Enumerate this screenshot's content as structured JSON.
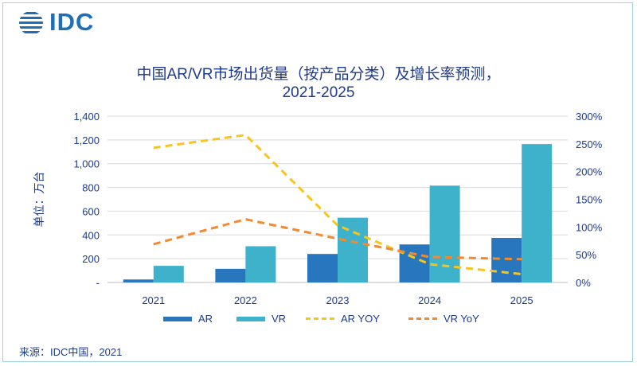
{
  "brand": {
    "logo_text": "IDC"
  },
  "title_line1": "中国AR/VR市场出货量（按产品分类）及增长率预测，",
  "title_line2": "2021-2025",
  "source": "来源：IDC中国，2021",
  "chart_data": {
    "type": "bar",
    "categories": [
      "2021",
      "2022",
      "2023",
      "2024",
      "2025"
    ],
    "ylabel": "单位：万台",
    "ylim": [
      0,
      1400
    ],
    "yticks": [
      0,
      200,
      400,
      600,
      800,
      1000,
      1200,
      1400
    ],
    "ytick_labels": [
      "-",
      "200",
      "400",
      "600",
      "800",
      "1,000",
      "1,200",
      "1,400"
    ],
    "y2lim": [
      0,
      300
    ],
    "y2ticks": [
      0,
      50,
      100,
      150,
      200,
      250,
      300
    ],
    "y2tick_labels": [
      "0%",
      "50%",
      "100%",
      "150%",
      "200%",
      "250%",
      "300%"
    ],
    "grid": true,
    "legend_position": "bottom",
    "series": [
      {
        "name": "AR",
        "kind": "bar",
        "axis": "left",
        "color": "#2776be",
        "values": [
          25,
          115,
          240,
          320,
          375
        ]
      },
      {
        "name": "VR",
        "kind": "bar",
        "axis": "left",
        "color": "#3fb2cb",
        "values": [
          140,
          305,
          545,
          815,
          1165
        ]
      },
      {
        "name": "AR YOY",
        "kind": "line",
        "axis": "right",
        "color": "#f7c51b",
        "values": [
          243,
          266,
          103,
          33,
          15
        ]
      },
      {
        "name": "VR YoY",
        "kind": "line",
        "axis": "right",
        "color": "#f28b30",
        "values": [
          69,
          114,
          79,
          46,
          42
        ]
      }
    ]
  }
}
